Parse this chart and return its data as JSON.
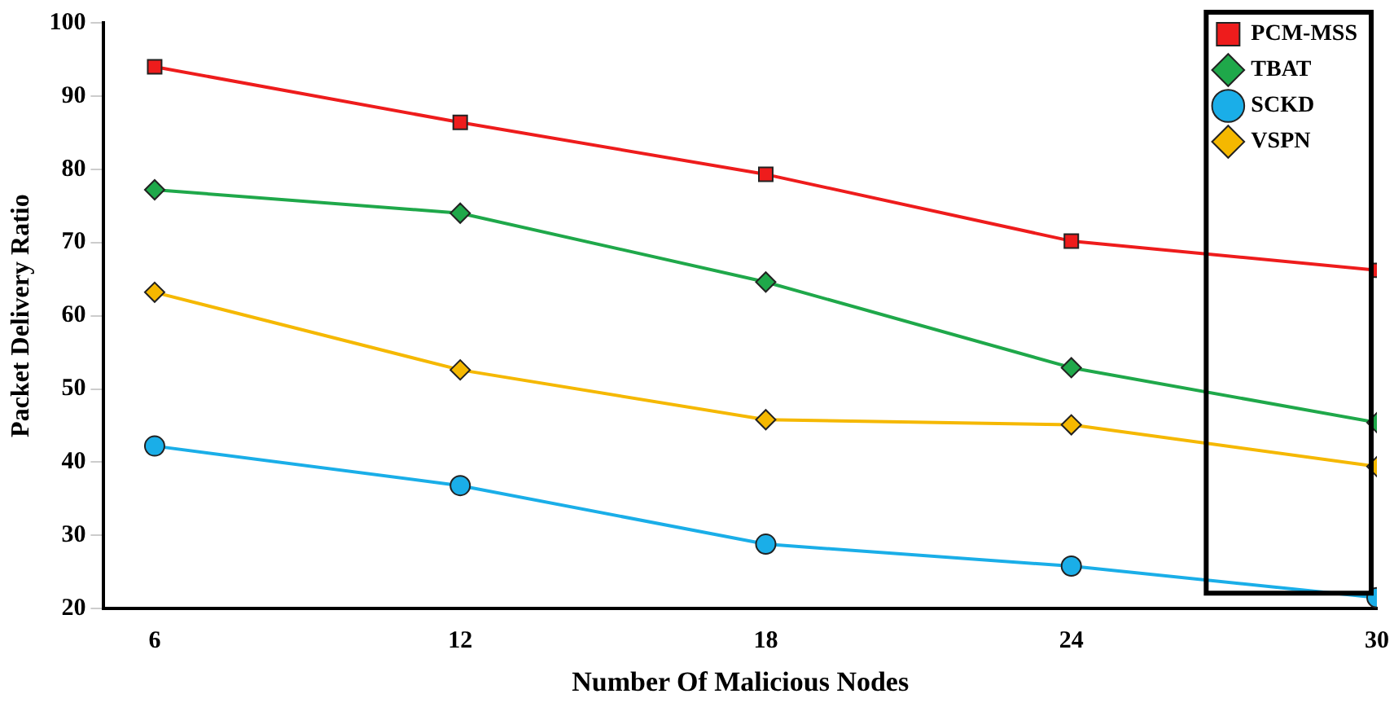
{
  "chart_data": {
    "type": "line",
    "xlabel": "Number Of Malicious Nodes",
    "ylabel": "Packet Delivery Ratio",
    "x": [
      6,
      12,
      18,
      24,
      30
    ],
    "xlim": [
      5,
      30
    ],
    "xticks": [
      6,
      12,
      18,
      24,
      30
    ],
    "ylim": [
      20,
      100
    ],
    "yticks": [
      20,
      30,
      40,
      50,
      60,
      70,
      80,
      90,
      100
    ],
    "grid": false,
    "legend": "top right",
    "line_style": "solid",
    "series": [
      {
        "name": "PCM-MSS",
        "color": "#ee1c1c",
        "marker": "square",
        "values": [
          94,
          86.4,
          79.3,
          70.2,
          66.2
        ]
      },
      {
        "name": "TBAT",
        "color": "#1fa84a",
        "marker": "diamond",
        "values": [
          77.2,
          74,
          64.6,
          52.9,
          45.4
        ]
      },
      {
        "name": "SCKD",
        "color": "#1aaee8",
        "marker": "circle",
        "values": [
          42.2,
          36.8,
          28.8,
          25.8,
          21.5
        ]
      },
      {
        "name": "VSPN",
        "color": "#f5b800",
        "marker": "diamond",
        "values": [
          63.2,
          52.6,
          45.8,
          45.1,
          39.4
        ]
      }
    ]
  }
}
